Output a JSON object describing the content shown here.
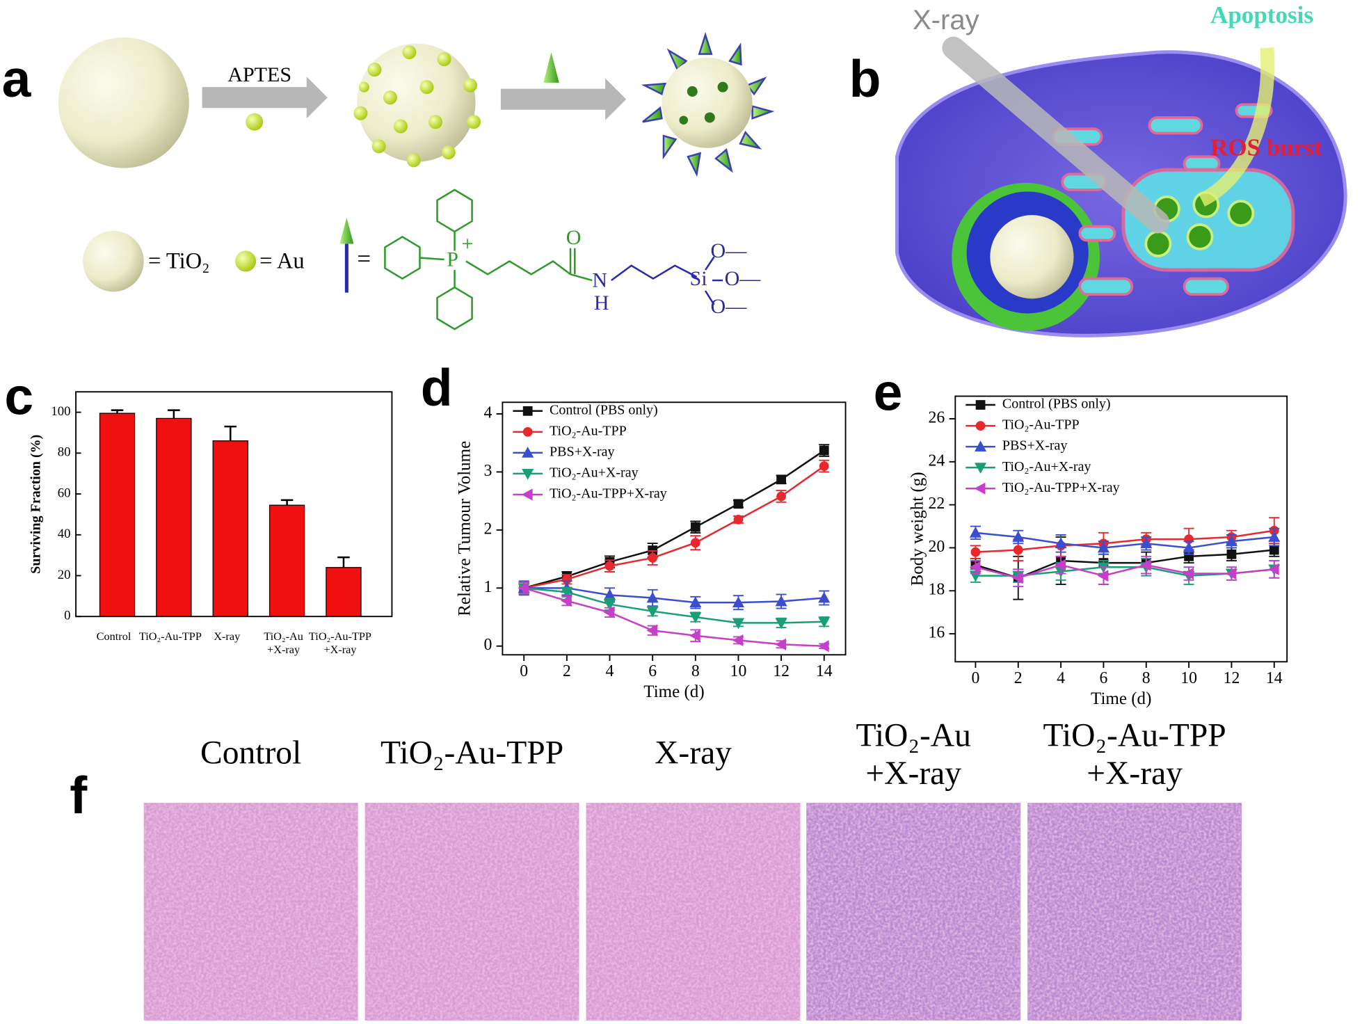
{
  "figure": {
    "panel_labels": [
      "a",
      "b",
      "c",
      "d",
      "e",
      "f"
    ],
    "scheme": {
      "reagent": "APTES",
      "tio2_key": "= TiO₂",
      "au_key": "= Au",
      "ligand_key": "=",
      "atoms": [
        "P",
        "+",
        "O",
        "N",
        "H",
        "Si",
        "O—",
        "O—",
        "O—"
      ]
    },
    "cell": {
      "xray": "X-ray",
      "apoptosis": "Apoptosis",
      "ros": "ROS burst"
    },
    "histology": {
      "labels": [
        "Control",
        "TiO₂-Au-TPP",
        "X-ray",
        "TiO₂-Au\n+X-ray",
        "TiO₂-Au-TPP\n+X-ray"
      ]
    }
  },
  "chart_data": [
    {
      "type": "bar",
      "y_label": "Surviving Fraction (%)",
      "categories": [
        "Control",
        "TiO₂-Au-TPP",
        "X-ray",
        "TiO₂-Au\n+X-ray",
        "TiO₂-Au-TPP\n+X-ray"
      ],
      "values": [
        99.5,
        97,
        86,
        54.5,
        24
      ],
      "errors": [
        1.5,
        4,
        7,
        2.5,
        5
      ],
      "color": "#f01010",
      "ylim": [
        0,
        110
      ],
      "yticks": [
        0,
        20,
        40,
        60,
        80,
        100
      ]
    },
    {
      "type": "line",
      "x_label": "Time (d)",
      "y_label": "Relative Tumour Volume",
      "legend": "upper left",
      "x": [
        0,
        2,
        4,
        6,
        8,
        10,
        12,
        14
      ],
      "xlim": [
        -1,
        15
      ],
      "xticks": [
        0,
        2,
        4,
        6,
        8,
        10,
        12,
        14
      ],
      "ylim": [
        -0.15,
        4.2
      ],
      "yticks": [
        0,
        1,
        2,
        3,
        4
      ],
      "series": [
        {
          "name": "Control (PBS only)",
          "color": "#111111",
          "marker": "square",
          "values": [
            1,
            1.2,
            1.45,
            1.65,
            2.05,
            2.45,
            2.87,
            3.37
          ],
          "errors": [
            0.1,
            0.08,
            0.1,
            0.12,
            0.1,
            0.06,
            0.07,
            0.1
          ]
        },
        {
          "name": "TiO₂-Au-TPP",
          "color": "#e8282c",
          "marker": "circle",
          "values": [
            1,
            1.15,
            1.38,
            1.52,
            1.78,
            2.18,
            2.58,
            3.1
          ],
          "errors": [
            0.1,
            0.08,
            0.1,
            0.12,
            0.12,
            0.06,
            0.1,
            0.1
          ]
        },
        {
          "name": "PBS+X-ray",
          "color": "#3a4fd0",
          "marker": "up",
          "values": [
            1,
            1.0,
            0.88,
            0.83,
            0.75,
            0.75,
            0.77,
            0.83
          ],
          "errors": [
            0.12,
            0.12,
            0.12,
            0.14,
            0.1,
            0.12,
            0.12,
            0.12
          ]
        },
        {
          "name": "TiO₂-Au+X-ray",
          "color": "#1a9e78",
          "marker": "down",
          "values": [
            1,
            0.93,
            0.72,
            0.6,
            0.5,
            0.4,
            0.4,
            0.42
          ],
          "errors": [
            0.1,
            0.08,
            0.1,
            0.08,
            0.08,
            0.06,
            0.08,
            0.08
          ]
        },
        {
          "name": "TiO₂-Au-TPP+X-ray",
          "color": "#c63fc9",
          "marker": "left",
          "values": [
            1,
            0.78,
            0.58,
            0.27,
            0.18,
            0.1,
            0.03,
            0.0
          ],
          "errors": [
            0.1,
            0.08,
            0.08,
            0.08,
            0.1,
            0.06,
            0.06,
            0.04
          ]
        }
      ]
    },
    {
      "type": "line",
      "x_label": "Time (d)",
      "y_label": "Body weight (g)",
      "legend": "upper left",
      "x": [
        0,
        2,
        4,
        6,
        8,
        10,
        12,
        14
      ],
      "xlim": [
        -0.95,
        14.6
      ],
      "xticks": [
        0,
        2,
        4,
        6,
        8,
        10,
        12,
        14
      ],
      "ylim": [
        14.7,
        27.05
      ],
      "yticks": [
        16,
        18,
        20,
        22,
        24,
        26
      ],
      "series": [
        {
          "name": "Control (PBS only)",
          "color": "#111111",
          "marker": "square",
          "values": [
            19.2,
            18.6,
            19.4,
            19.3,
            19.3,
            19.6,
            19.7,
            19.9
          ],
          "errors": [
            0.3,
            1.0,
            1.1,
            1.0,
            0.5,
            0.3,
            0.3,
            0.3
          ]
        },
        {
          "name": "TiO₂-Au-TPP",
          "color": "#e8282c",
          "marker": "circle",
          "values": [
            19.8,
            19.9,
            20.1,
            20.2,
            20.4,
            20.4,
            20.5,
            20.8
          ],
          "errors": [
            0.3,
            0.5,
            0.5,
            0.5,
            0.3,
            0.5,
            0.3,
            0.6
          ]
        },
        {
          "name": "PBS+X-ray",
          "color": "#3a4fd0",
          "marker": "up",
          "values": [
            20.7,
            20.5,
            20.2,
            20.0,
            20.2,
            20.0,
            20.3,
            20.5
          ],
          "errors": [
            0.3,
            0.3,
            0.4,
            0.3,
            0.3,
            0.3,
            0.3,
            0.4
          ]
        },
        {
          "name": "TiO₂-Au+X-ray",
          "color": "#1a9e78",
          "marker": "down",
          "values": [
            18.7,
            18.7,
            18.9,
            19.1,
            19.1,
            18.7,
            18.8,
            19.0
          ],
          "errors": [
            0.3,
            0.3,
            0.4,
            0.3,
            0.4,
            0.4,
            0.3,
            0.4
          ]
        },
        {
          "name": "TiO₂-Au-TPP+X-ray",
          "color": "#c63fc9",
          "marker": "left",
          "values": [
            19.1,
            18.6,
            19.2,
            18.7,
            19.2,
            18.8,
            18.8,
            19.0
          ],
          "errors": [
            0.3,
            0.4,
            0.4,
            0.4,
            0.4,
            0.3,
            0.3,
            0.4
          ]
        }
      ]
    }
  ]
}
